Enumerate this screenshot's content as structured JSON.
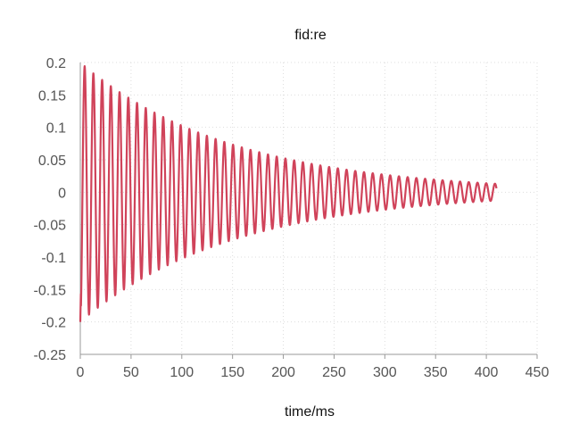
{
  "chart_data": {
    "type": "line",
    "title": "fid:re",
    "xlabel": "time/ms",
    "ylabel": "",
    "xlim": [
      0,
      450
    ],
    "ylim": [
      -0.25,
      0.2
    ],
    "x_ticks": [
      0,
      50,
      100,
      150,
      200,
      250,
      300,
      350,
      400,
      450
    ],
    "y_ticks": [
      0.2,
      0.15,
      0.1,
      0.05,
      0,
      -0.05,
      -0.1,
      -0.15,
      -0.2,
      -0.25
    ],
    "x_tick_labels": [
      "0",
      "50",
      "100",
      "150",
      "200",
      "250",
      "300",
      "350",
      "400",
      "450"
    ],
    "y_tick_labels": [
      "0.2",
      "0.15",
      "0.1",
      "0.05",
      "0",
      "-0.05",
      "-0.1",
      "-0.15",
      "-0.2",
      "-0.25"
    ],
    "grid": true,
    "series": [
      {
        "color": "#d0435a",
        "x_start": 0,
        "x_end": 410,
        "y_initial": -0.2,
        "amplitude": 0.2,
        "period_ms": 8.6,
        "decay_time_ms": 150,
        "end_offset": 0.007
      }
    ]
  }
}
